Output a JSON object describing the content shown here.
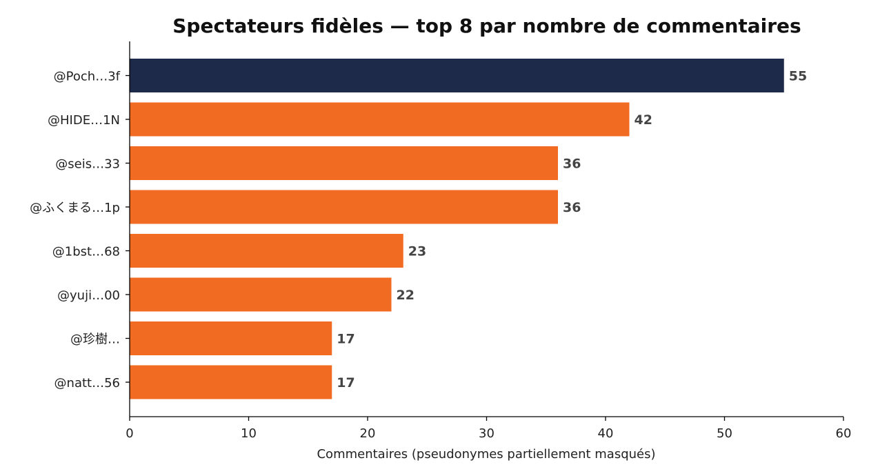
{
  "chart_data": {
    "type": "bar",
    "orientation": "horizontal",
    "title": "Spectateurs fidèles — top 8 par nombre de commentaires",
    "xlabel": "Commentaires (pseudonymes partiellement masqués)",
    "ylabel": "",
    "xlim": [
      0,
      60
    ],
    "xticks": [
      0,
      10,
      20,
      30,
      40,
      50,
      60
    ],
    "grid": false,
    "legend": "none",
    "categories": [
      "@Poch…3f",
      "@HIDE…1N",
      "@seis…33",
      "@ふくまる…1p",
      "@1bst…68",
      "@yuji…00",
      "@珍樹…",
      "@natt…56"
    ],
    "values": [
      55,
      42,
      36,
      36,
      23,
      22,
      17,
      17
    ],
    "highlight_index": 0,
    "colors": {
      "highlight": "#1e2a4a",
      "default": "#f26b22",
      "value_label": "#444444",
      "axis": "#000000"
    }
  }
}
